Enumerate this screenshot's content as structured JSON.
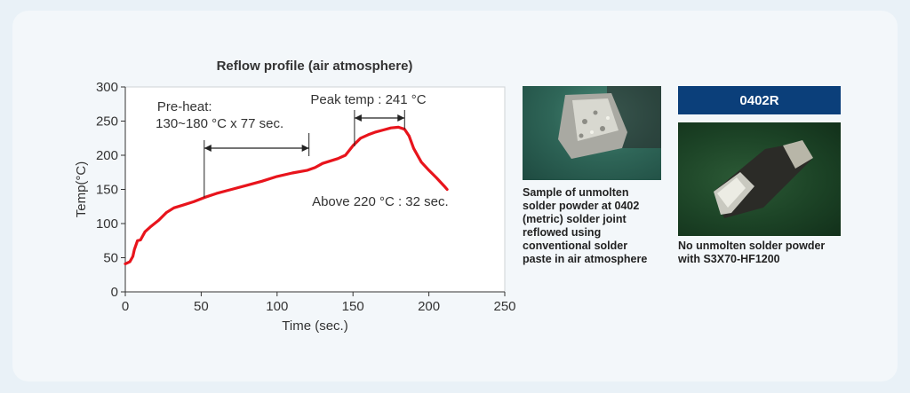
{
  "chart_data": {
    "type": "line",
    "title": "Reflow profile (air atmosphere)",
    "xlabel": "Time (sec.)",
    "ylabel": "Temp(°C)",
    "xlim": [
      0,
      250
    ],
    "ylim": [
      0,
      300
    ],
    "x_ticks": [
      "0",
      "50",
      "100",
      "150",
      "200",
      "250"
    ],
    "y_ticks": [
      "0",
      "50",
      "100",
      "150",
      "200",
      "250",
      "300"
    ],
    "grid": false,
    "series": [
      {
        "color": "#e8141c",
        "points": [
          [
            0,
            41
          ],
          [
            3,
            44
          ],
          [
            5,
            52
          ],
          [
            6,
            62
          ],
          [
            8,
            75
          ],
          [
            10,
            76
          ],
          [
            13,
            88
          ],
          [
            17,
            96
          ],
          [
            22,
            105
          ],
          [
            27,
            116
          ],
          [
            32,
            123
          ],
          [
            38,
            127
          ],
          [
            45,
            132
          ],
          [
            52,
            138
          ],
          [
            60,
            144
          ],
          [
            70,
            150
          ],
          [
            80,
            156
          ],
          [
            90,
            162
          ],
          [
            100,
            169
          ],
          [
            110,
            174
          ],
          [
            120,
            178
          ],
          [
            125,
            182
          ],
          [
            130,
            188
          ],
          [
            140,
            195
          ],
          [
            145,
            200
          ],
          [
            150,
            214
          ],
          [
            155,
            225
          ],
          [
            160,
            230
          ],
          [
            165,
            234
          ],
          [
            170,
            237
          ],
          [
            175,
            240
          ],
          [
            180,
            241
          ],
          [
            184,
            238
          ],
          [
            187,
            228
          ],
          [
            190,
            210
          ],
          [
            195,
            190
          ],
          [
            200,
            178
          ],
          [
            205,
            167
          ],
          [
            210,
            155
          ],
          [
            212,
            150
          ]
        ]
      }
    ],
    "annotations": {
      "preheat_label_1": "Pre-heat:",
      "preheat_label_2": "130~180 °C x 77 sec.",
      "preheat_span": [
        52,
        121
      ],
      "peak_label": "Peak temp : 241 °C",
      "peak_span": [
        151,
        184
      ],
      "above_label": "Above 220 °C : 32 sec."
    }
  },
  "photos": {
    "left_caption_lines": [
      "Sample of unmolten",
      "solder powder at 0402",
      "(metric) solder joint",
      "reflowed using",
      "conventional solder",
      "paste in air atmosphere"
    ],
    "right_badge": "0402R",
    "right_caption_lines": [
      "No unmolten solder powder",
      "with S3X70-HF1200"
    ]
  }
}
